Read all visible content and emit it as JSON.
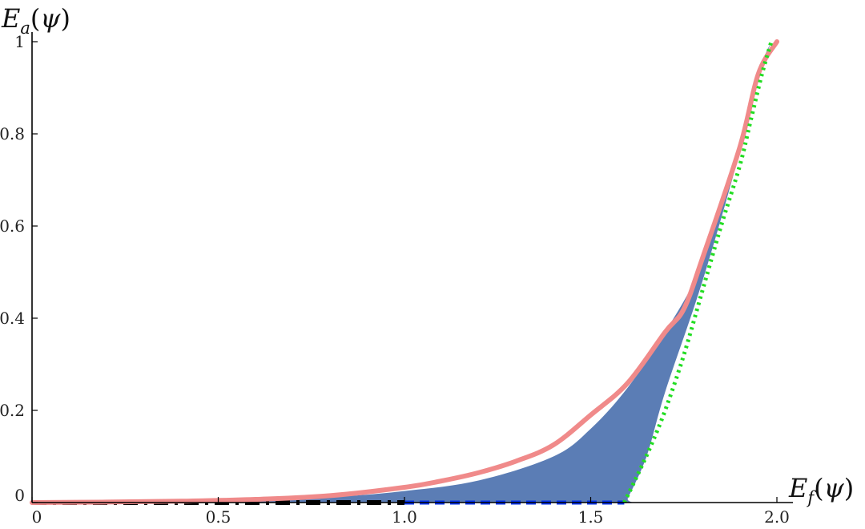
{
  "chart_data": {
    "type": "area",
    "xlabel": {
      "base": "E",
      "sub": "f",
      "arg": "ψ"
    },
    "ylabel": {
      "base": "E",
      "sub": "a",
      "arg": "ψ"
    },
    "xlim": [
      0,
      2.0
    ],
    "ylim": [
      0,
      1
    ],
    "x_ticks": [
      0,
      0.5,
      1.0,
      1.5,
      2.0
    ],
    "x_tick_labels": [
      "0",
      "0.5",
      "1.0",
      "1.5",
      "2.0"
    ],
    "y_ticks": [
      0,
      0.2,
      0.4,
      0.6,
      0.8,
      1
    ],
    "y_tick_labels": [
      "0",
      "0.2",
      "0.4",
      "0.6",
      "0.8",
      "1"
    ],
    "grid": false,
    "region": {
      "color": "#5b7db5",
      "upper": [
        [
          0,
          0
        ],
        [
          0.5,
          0.004
        ],
        [
          0.8,
          0.012
        ],
        [
          1.0,
          0.025
        ],
        [
          1.2,
          0.048
        ],
        [
          1.4,
          0.1
        ],
        [
          1.5,
          0.16
        ],
        [
          1.6,
          0.25
        ],
        [
          1.7,
          0.37
        ],
        [
          1.8,
          0.52
        ],
        [
          1.9,
          0.77
        ],
        [
          1.95,
          0.92
        ],
        [
          1.985,
          1.0
        ]
      ],
      "lower": [
        [
          1.985,
          1.0
        ],
        [
          1.95,
          0.93
        ],
        [
          1.9,
          0.76
        ],
        [
          1.8,
          0.48
        ],
        [
          1.7,
          0.24
        ],
        [
          1.65,
          0.1
        ],
        [
          1.6,
          0.01
        ],
        [
          1.59,
          0
        ],
        [
          1.0,
          0
        ],
        [
          0.5,
          0
        ],
        [
          0,
          0
        ]
      ]
    },
    "series": [
      {
        "style": "solid-thick",
        "color": "#f08a8a",
        "points": [
          [
            0,
            0.0
          ],
          [
            0.2,
            0.001
          ],
          [
            0.4,
            0.003
          ],
          [
            0.6,
            0.007
          ],
          [
            0.8,
            0.015
          ],
          [
            1.0,
            0.033
          ],
          [
            1.1,
            0.047
          ],
          [
            1.2,
            0.065
          ],
          [
            1.3,
            0.09
          ],
          [
            1.4,
            0.125
          ],
          [
            1.5,
            0.19
          ],
          [
            1.6,
            0.26
          ],
          [
            1.7,
            0.37
          ],
          [
            1.75,
            0.42
          ],
          [
            1.8,
            0.53
          ],
          [
            1.9,
            0.77
          ],
          [
            1.95,
            0.93
          ],
          [
            2.0,
            1.0
          ]
        ]
      },
      {
        "style": "dotted",
        "color": "#22dd22",
        "points": [
          [
            1.59,
            0
          ],
          [
            1.62,
            0.05
          ],
          [
            1.66,
            0.12
          ],
          [
            1.7,
            0.2
          ],
          [
            1.75,
            0.32
          ],
          [
            1.8,
            0.46
          ],
          [
            1.85,
            0.6
          ],
          [
            1.9,
            0.73
          ],
          [
            1.93,
            0.83
          ],
          [
            1.96,
            0.93
          ],
          [
            1.985,
            1.0
          ]
        ]
      },
      {
        "style": "dashed",
        "color": "#0033ee",
        "points": [
          [
            1.0,
            0
          ],
          [
            1.59,
            0
          ]
        ]
      },
      {
        "style": "dash-dot",
        "color": "#000000",
        "points": [
          [
            0,
            0
          ],
          [
            1.0,
            0
          ]
        ]
      }
    ]
  }
}
